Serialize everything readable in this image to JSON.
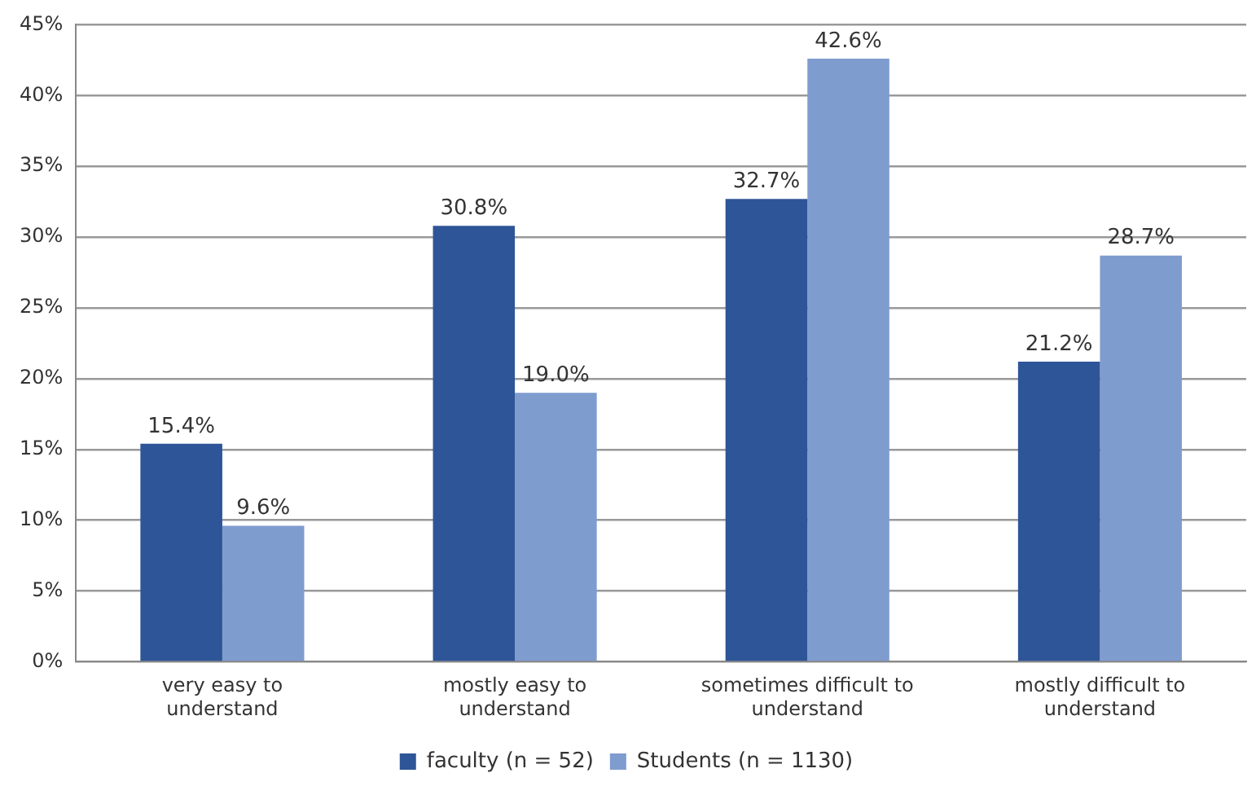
{
  "chart_data": {
    "type": "bar",
    "categories": [
      "very easy to understand",
      "mostly easy to understand",
      "sometimes difficult to understand",
      "mostly difficult to understand"
    ],
    "series": [
      {
        "name": "faculty (n = 52)",
        "color": "#2e5597",
        "values": [
          15.4,
          30.8,
          32.7,
          21.2
        ],
        "value_labels": [
          "15.4%",
          "30.8%",
          "32.7%",
          "21.2%"
        ]
      },
      {
        "name": "Students (n = 1130)",
        "color": "#7f9ccf",
        "values": [
          9.6,
          19.0,
          42.6,
          28.7
        ],
        "value_labels": [
          "9.6%",
          "19.0%",
          "42.6%",
          "28.7%"
        ]
      }
    ],
    "ylim": [
      0,
      45
    ],
    "yticks": [
      {
        "value": 0,
        "label": "0%"
      },
      {
        "value": 5,
        "label": "5%"
      },
      {
        "value": 10,
        "label": "10%"
      },
      {
        "value": 15,
        "label": "15%"
      },
      {
        "value": 20,
        "label": "20%"
      },
      {
        "value": 25,
        "label": "25%"
      },
      {
        "value": 30,
        "label": "30%"
      },
      {
        "value": 35,
        "label": "35%"
      },
      {
        "value": 40,
        "label": "40%"
      },
      {
        "value": 45,
        "label": "45%"
      }
    ],
    "grid": "y",
    "legend": "bottom"
  }
}
